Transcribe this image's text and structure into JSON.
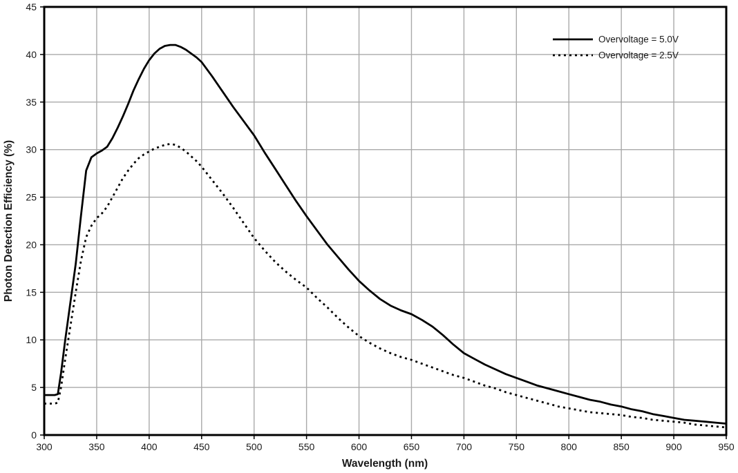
{
  "figure": {
    "background": "#ffffff",
    "axis_color": "#000000",
    "grid_color": "#a9a9a9",
    "text_color": "#1a1a1a",
    "line_color": "#000000"
  },
  "chart_data": {
    "type": "line",
    "title": "",
    "xlabel": "Wavelength (nm)",
    "ylabel": "Photon Detection Efficiency (%)",
    "xlim": [
      300,
      950
    ],
    "ylim": [
      0,
      45
    ],
    "x_ticks": [
      300,
      350,
      400,
      450,
      500,
      550,
      600,
      650,
      700,
      750,
      800,
      850,
      900,
      950
    ],
    "y_ticks": [
      0,
      5,
      10,
      15,
      20,
      25,
      30,
      35,
      40,
      45
    ],
    "grid": true,
    "legend_position": "top-right",
    "series": [
      {
        "name": "Overvoltage = 5.0V",
        "style": "solid",
        "x": [
          300,
          310,
          313,
          316,
          320,
          325,
          330,
          335,
          340,
          345,
          350,
          355,
          360,
          365,
          370,
          375,
          380,
          385,
          390,
          395,
          400,
          405,
          410,
          415,
          420,
          425,
          430,
          435,
          440,
          445,
          450,
          460,
          470,
          480,
          490,
          500,
          510,
          520,
          530,
          540,
          550,
          560,
          570,
          580,
          590,
          600,
          610,
          620,
          630,
          640,
          650,
          660,
          670,
          680,
          690,
          700,
          710,
          720,
          730,
          740,
          750,
          760,
          770,
          780,
          790,
          800,
          810,
          820,
          830,
          840,
          850,
          860,
          870,
          880,
          890,
          900,
          910,
          920,
          930,
          940,
          950
        ],
        "y": [
          4.2,
          4.2,
          4.3,
          6.5,
          10.0,
          14.0,
          18.0,
          23.0,
          27.8,
          29.2,
          29.6,
          29.9,
          30.3,
          31.2,
          32.3,
          33.5,
          34.8,
          36.2,
          37.4,
          38.5,
          39.4,
          40.1,
          40.6,
          40.9,
          41.0,
          41.0,
          40.8,
          40.5,
          40.1,
          39.7,
          39.2,
          37.7,
          36.1,
          34.5,
          33.0,
          31.5,
          29.7,
          28.0,
          26.3,
          24.6,
          23.0,
          21.5,
          20.0,
          18.7,
          17.4,
          16.2,
          15.2,
          14.3,
          13.6,
          13.1,
          12.7,
          12.1,
          11.4,
          10.5,
          9.5,
          8.6,
          8.0,
          7.4,
          6.9,
          6.4,
          6.0,
          5.6,
          5.2,
          4.9,
          4.6,
          4.3,
          4.0,
          3.7,
          3.5,
          3.2,
          3.0,
          2.7,
          2.5,
          2.2,
          2.0,
          1.8,
          1.6,
          1.5,
          1.4,
          1.3,
          1.2
        ]
      },
      {
        "name": "Overvoltage = 2.5V",
        "style": "dotted",
        "x": [
          300,
          310,
          313,
          316,
          320,
          325,
          330,
          335,
          340,
          345,
          350,
          355,
          360,
          365,
          370,
          375,
          380,
          385,
          390,
          395,
          400,
          405,
          410,
          415,
          420,
          425,
          430,
          435,
          440,
          445,
          450,
          460,
          470,
          480,
          490,
          500,
          510,
          520,
          530,
          540,
          550,
          560,
          570,
          580,
          590,
          600,
          610,
          620,
          630,
          640,
          650,
          660,
          670,
          680,
          690,
          700,
          710,
          720,
          730,
          740,
          750,
          760,
          770,
          780,
          790,
          800,
          810,
          820,
          830,
          840,
          850,
          860,
          870,
          880,
          890,
          900,
          910,
          920,
          930,
          940,
          950
        ],
        "y": [
          3.3,
          3.3,
          3.4,
          5.0,
          8.0,
          11.5,
          15.0,
          18.3,
          20.8,
          22.0,
          22.8,
          23.3,
          24.0,
          25.0,
          26.0,
          27.0,
          27.8,
          28.5,
          29.1,
          29.5,
          29.8,
          30.1,
          30.3,
          30.5,
          30.6,
          30.5,
          30.2,
          29.8,
          29.3,
          28.8,
          28.2,
          26.8,
          25.4,
          23.9,
          22.3,
          20.7,
          19.4,
          18.2,
          17.2,
          16.3,
          15.5,
          14.4,
          13.4,
          12.3,
          11.3,
          10.4,
          9.7,
          9.1,
          8.6,
          8.2,
          7.9,
          7.5,
          7.1,
          6.7,
          6.3,
          6.0,
          5.6,
          5.2,
          4.9,
          4.5,
          4.2,
          3.9,
          3.6,
          3.3,
          3.0,
          2.8,
          2.6,
          2.4,
          2.3,
          2.2,
          2.1,
          1.9,
          1.8,
          1.6,
          1.5,
          1.4,
          1.3,
          1.1,
          1.0,
          0.9,
          0.8
        ]
      }
    ]
  }
}
